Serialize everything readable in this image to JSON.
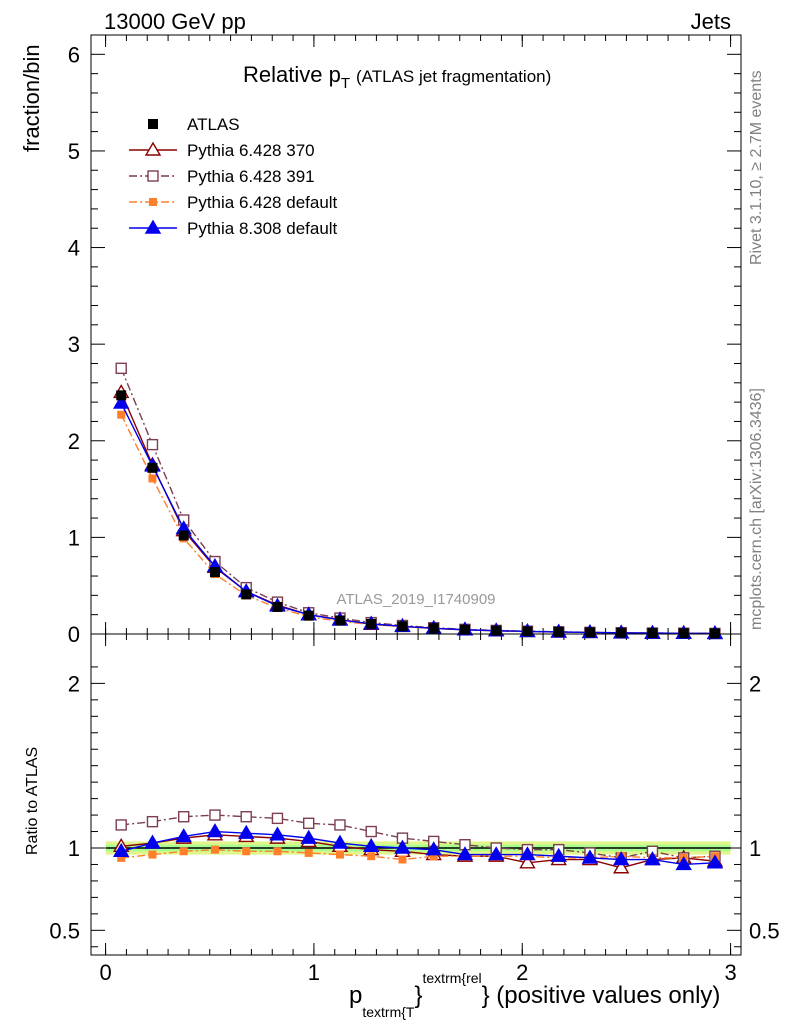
{
  "header": {
    "left": "13000 GeV pp",
    "right": "Jets"
  },
  "side_labels": {
    "rivet": "Rivet 3.1.10, ≥ 2.7M events",
    "mcplots": "mcplots.cern.ch [arXiv:1306.3436]"
  },
  "analysis_id": "ATLAS_2019_I1740909",
  "chart_data": {
    "type": "line",
    "title": "Relative p",
    "title_sub": "T",
    "title_note": "(ATLAS jet fragmentation)",
    "ylabel": "fraction/bin",
    "ratio_ylabel": "Ratio to ATLAS",
    "xlabel": {
      "main": "p",
      "sub": "textrm{T",
      "brace": "}",
      "sup": "textrm{rel",
      "tail": "} (positive values only)"
    },
    "xlim": [
      -0.07,
      3.05
    ],
    "ylim": [
      0,
      6.2
    ],
    "ratio_ylim": [
      0.35,
      2.3
    ],
    "x_ticks": [
      0,
      1,
      2,
      3
    ],
    "y_ticks": [
      0,
      1,
      2,
      3,
      4,
      5,
      6
    ],
    "ratio_y_ticks": [
      0.5,
      1,
      2
    ],
    "x": [
      0.075,
      0.225,
      0.375,
      0.525,
      0.675,
      0.825,
      0.975,
      1.125,
      1.275,
      1.425,
      1.575,
      1.725,
      1.875,
      2.025,
      2.175,
      2.325,
      2.475,
      2.625,
      2.775,
      2.925
    ],
    "series": [
      {
        "name": "ATLAS",
        "style": "data",
        "values": [
          2.47,
          1.72,
          1.02,
          0.64,
          0.41,
          0.28,
          0.19,
          0.14,
          0.105,
          0.08,
          0.06,
          0.045,
          0.035,
          0.028,
          0.022,
          0.017,
          0.013,
          0.01,
          0.008,
          0.006
        ],
        "ratio": [
          1,
          1,
          1,
          1,
          1,
          1,
          1,
          1,
          1,
          1,
          1,
          1,
          1,
          1,
          1,
          1,
          1,
          1,
          1,
          1
        ]
      },
      {
        "name": "Pythia 6.428 370",
        "style": "solid",
        "color": "#8b0000",
        "marker": "triangle-open",
        "values": [
          2.5,
          1.75,
          1.07,
          0.69,
          0.44,
          0.3,
          0.2,
          0.15,
          0.1,
          0.078,
          0.058,
          0.043,
          0.033,
          0.025,
          0.02,
          0.016,
          0.011,
          0.009,
          0.0075,
          0.0055
        ],
        "ratio": [
          1.01,
          1.03,
          1.06,
          1.08,
          1.07,
          1.06,
          1.04,
          1.01,
          0.99,
          0.98,
          0.96,
          0.95,
          0.95,
          0.91,
          0.93,
          0.93,
          0.88,
          0.93,
          0.94,
          0.92
        ]
      },
      {
        "name": "Pythia 6.428 391",
        "style": "dashdot",
        "color": "#7b3f50",
        "marker": "square-open",
        "values": [
          2.75,
          1.96,
          1.18,
          0.75,
          0.48,
          0.33,
          0.22,
          0.165,
          0.118,
          0.088,
          0.065,
          0.048,
          0.037,
          0.029,
          0.023,
          0.017,
          0.013,
          0.01,
          0.008,
          0.006
        ],
        "ratio": [
          1.14,
          1.16,
          1.19,
          1.2,
          1.19,
          1.18,
          1.15,
          1.14,
          1.1,
          1.06,
          1.04,
          1.02,
          1.0,
          0.99,
          0.99,
          0.97,
          0.94,
          0.98,
          0.94,
          0.95
        ]
      },
      {
        "name": "Pythia 6.428 default",
        "style": "dashdot",
        "color": "#ff7f2a",
        "marker": "square-filled",
        "values": [
          2.27,
          1.61,
          0.99,
          0.62,
          0.4,
          0.27,
          0.18,
          0.13,
          0.1,
          0.075,
          0.057,
          0.043,
          0.033,
          0.026,
          0.02,
          0.016,
          0.012,
          0.009,
          0.0075,
          0.0055
        ],
        "ratio": [
          0.94,
          0.96,
          0.98,
          0.99,
          0.98,
          0.98,
          0.97,
          0.96,
          0.95,
          0.93,
          0.95,
          0.95,
          0.95,
          0.95,
          0.94,
          0.94,
          0.95,
          0.94,
          0.94,
          0.95
        ]
      },
      {
        "name": "Pythia 8.308 default",
        "style": "solid",
        "color": "#0000ee",
        "marker": "triangle-filled",
        "values": [
          2.39,
          1.74,
          1.09,
          0.7,
          0.44,
          0.29,
          0.2,
          0.145,
          0.105,
          0.08,
          0.059,
          0.044,
          0.034,
          0.027,
          0.021,
          0.016,
          0.012,
          0.009,
          0.007,
          0.0055
        ],
        "ratio": [
          0.98,
          1.03,
          1.07,
          1.1,
          1.09,
          1.08,
          1.06,
          1.03,
          1.01,
          1.0,
          0.99,
          0.96,
          0.96,
          0.96,
          0.95,
          0.94,
          0.93,
          0.93,
          0.9,
          0.91
        ]
      }
    ],
    "legend": "top-left",
    "grid": false,
    "band_colors": {
      "outer": "#e0f58a",
      "inner": "#a8ff8f"
    }
  }
}
